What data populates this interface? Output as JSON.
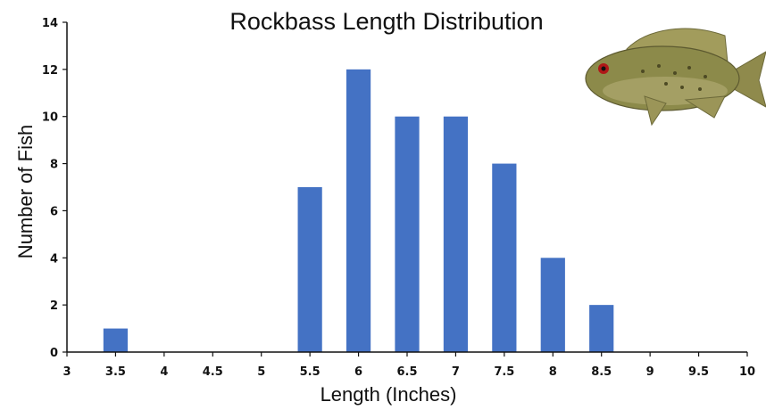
{
  "chart_data": {
    "type": "bar",
    "title": "Rockbass Length Distribution",
    "xlabel": "Length (Inches)",
    "ylabel": "Number of Fish",
    "x_ticks": [
      "3",
      "3.5",
      "4",
      "4.5",
      "5",
      "5.5",
      "6",
      "6.5",
      "7",
      "7.5",
      "8",
      "8.5",
      "9",
      "9.5",
      "10"
    ],
    "y_ticks": [
      "0",
      "2",
      "4",
      "6",
      "8",
      "10",
      "12",
      "14"
    ],
    "xlim": [
      3,
      10
    ],
    "ylim": [
      0,
      14
    ],
    "x": [
      3.5,
      5.5,
      6,
      6.5,
      7,
      7.5,
      8,
      8.5
    ],
    "values": [
      1,
      7,
      12,
      10,
      10,
      8,
      4,
      2
    ],
    "bar_color": "#4472C4",
    "grid": false,
    "legend": "none",
    "image": "rock-bass-fish-illustration"
  }
}
